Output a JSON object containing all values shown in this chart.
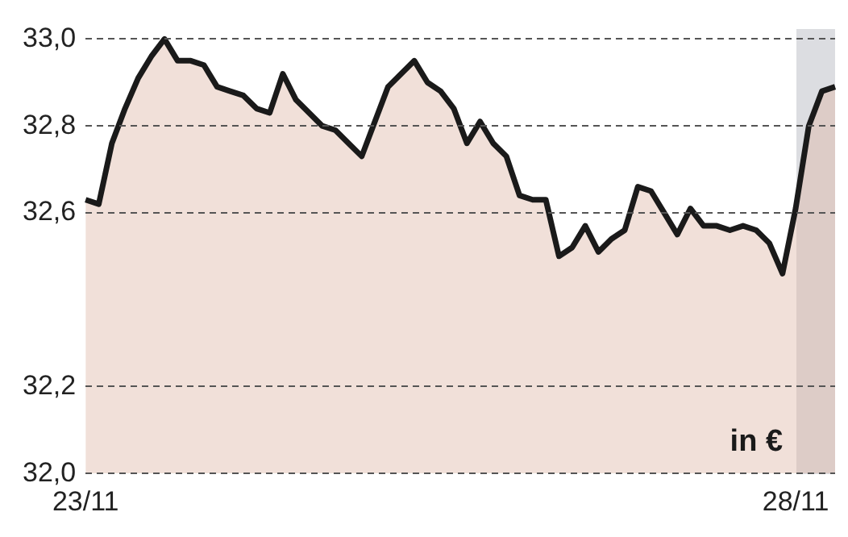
{
  "chart_data": {
    "type": "area",
    "categories": [
      "23/11",
      null,
      null,
      null,
      null,
      null,
      null,
      null,
      null,
      null,
      null,
      null,
      null,
      null,
      null,
      null,
      null,
      null,
      null,
      null,
      null,
      null,
      null,
      null,
      null,
      null,
      null,
      null,
      null,
      null,
      null,
      null,
      null,
      null,
      null,
      null,
      null,
      null,
      null,
      null,
      null,
      null,
      null,
      null,
      null,
      null,
      null,
      null,
      null,
      null,
      null,
      null,
      null,
      null,
      "28/11",
      null,
      null,
      null
    ],
    "series": [
      {
        "color": "#1a1a1a",
        "values": [
          32.63,
          32.62,
          32.76,
          32.84,
          32.91,
          32.96,
          33.0,
          32.95,
          32.95,
          32.94,
          32.89,
          32.88,
          32.87,
          32.84,
          32.83,
          32.92,
          32.86,
          32.83,
          32.8,
          32.79,
          32.76,
          32.73,
          32.81,
          32.89,
          32.92,
          32.95,
          32.9,
          32.88,
          32.84,
          32.76,
          32.81,
          32.76,
          32.73,
          32.64,
          32.63,
          32.63,
          32.5,
          32.52,
          32.57,
          32.51,
          32.54,
          32.56,
          32.66,
          32.65,
          32.6,
          32.55,
          32.61,
          32.57,
          32.57,
          32.56,
          32.57,
          32.56,
          32.53,
          32.46,
          32.61,
          32.8,
          32.88,
          32.89
        ]
      }
    ],
    "ylim": [
      32.0,
      33.0
    ],
    "yticks": [
      {
        "value": 32.0,
        "label": "32,0"
      },
      {
        "value": 32.2,
        "label": "32,2"
      },
      {
        "value": 32.6,
        "label": "32,6"
      },
      {
        "value": 32.8,
        "label": "32,8"
      },
      {
        "value": 33.0,
        "label": "33,0"
      }
    ],
    "annotations": [
      "in €"
    ],
    "grid": "y",
    "legend": false,
    "marker": "none",
    "line_style": "solid"
  }
}
